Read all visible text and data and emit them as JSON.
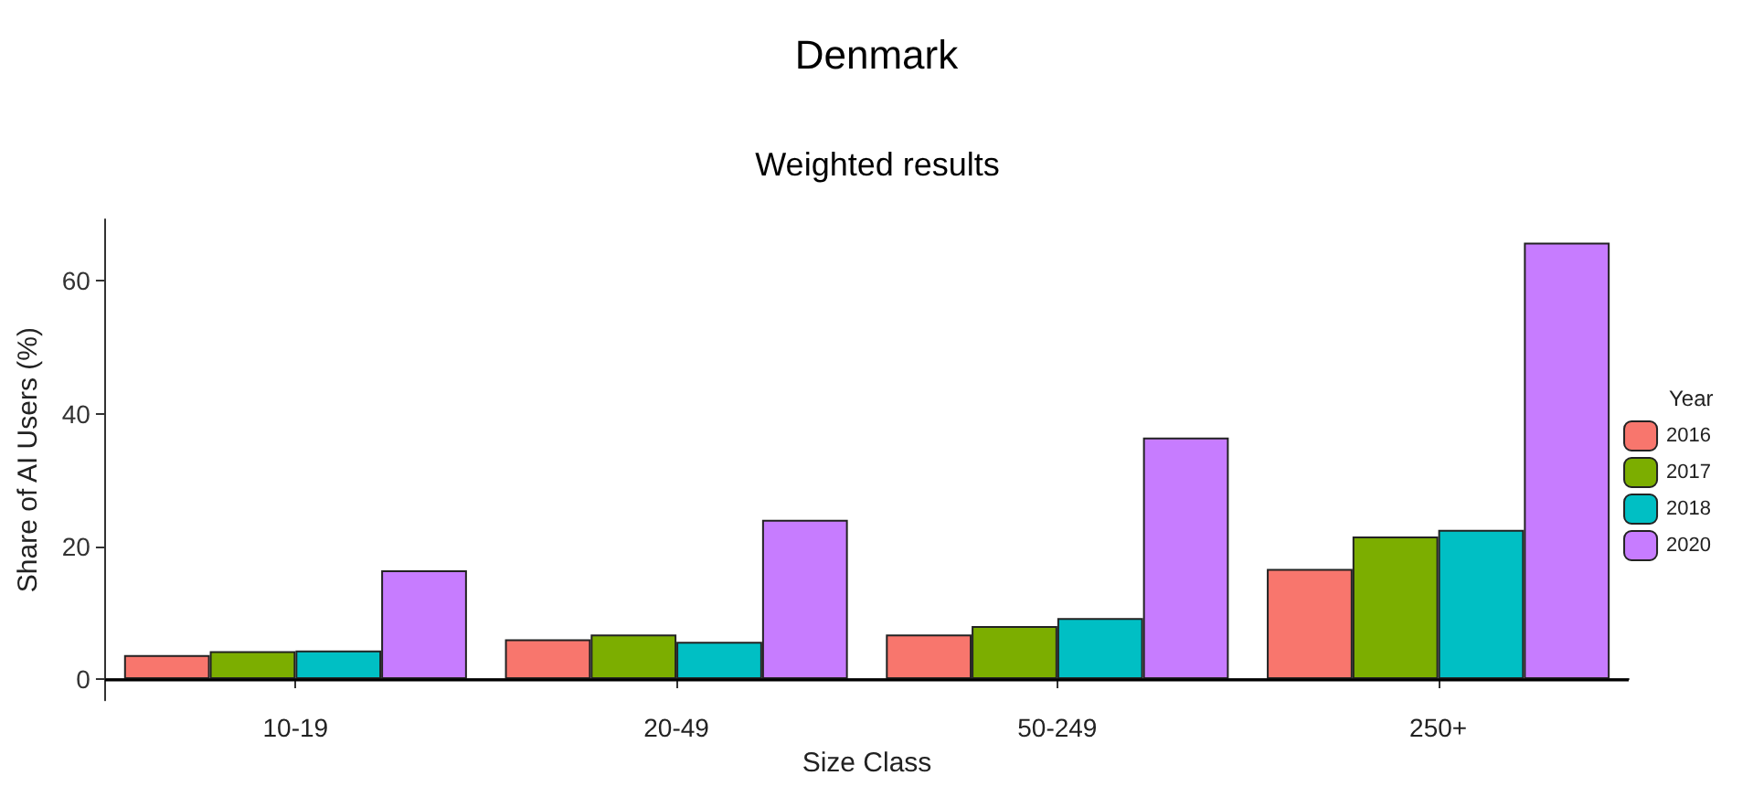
{
  "chart_data": {
    "type": "bar",
    "title": "Denmark",
    "subtitle": "Weighted results",
    "xlabel": "Size Class",
    "ylabel": "Share of AI Users (%)",
    "legend_title": "Year",
    "categories": [
      "10-19",
      "20-49",
      "50-249",
      "250+"
    ],
    "series": [
      {
        "name": "2016",
        "color": "#f8766d",
        "values": [
          3.6,
          6.0,
          6.7,
          16.6
        ]
      },
      {
        "name": "2017",
        "color": "#7cae00",
        "values": [
          4.2,
          6.7,
          8.0,
          21.5
        ]
      },
      {
        "name": "2018",
        "color": "#00bfc4",
        "values": [
          4.3,
          5.6,
          9.2,
          22.5
        ]
      },
      {
        "name": "2020",
        "color": "#c77cff",
        "values": [
          16.4,
          24.0,
          36.4,
          65.8
        ]
      }
    ],
    "ylim": [
      -3.2,
      69.3
    ],
    "yticks": [
      0,
      20,
      40,
      60
    ],
    "ref_lines": [
      {
        "axis": "y",
        "value": 0
      }
    ],
    "grid": false,
    "legend": "right"
  }
}
